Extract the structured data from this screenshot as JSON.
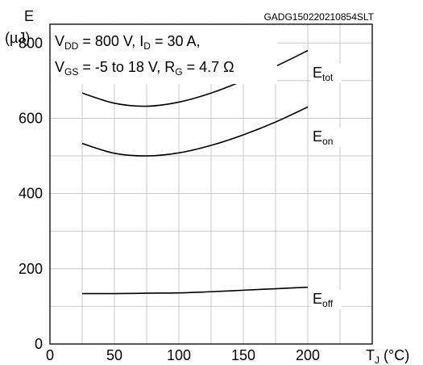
{
  "chart_data": {
    "type": "line",
    "doc_id": "GADG150220210854SLT",
    "ylabel": {
      "symbol": "E",
      "unit": "(µJ)"
    },
    "xlabel": {
      "symbol": "T",
      "sub": "J",
      "unit": " (°C)"
    },
    "conditions": [
      [
        {
          "t": "V"
        },
        {
          "t": "DD",
          "sub": true
        },
        {
          "t": " = 800 V, I"
        },
        {
          "t": "D",
          "sub": true
        },
        {
          "t": " = 30 A,"
        }
      ],
      [
        {
          "t": "V"
        },
        {
          "t": "GS",
          "sub": true
        },
        {
          "t": " = -5 to 18 V, R"
        },
        {
          "t": "G",
          "sub": true
        },
        {
          "t": " = 4.7 Ω"
        }
      ]
    ],
    "xlim": [
      0,
      250
    ],
    "ylim": [
      0,
      850
    ],
    "x_ticks": [
      "0",
      "50",
      "100",
      "150",
      "200"
    ],
    "y_ticks": [
      "0",
      "200",
      "400",
      "600",
      "800"
    ],
    "x_tick_values": [
      0,
      50,
      100,
      150,
      200
    ],
    "y_tick_values": [
      0,
      200,
      400,
      600,
      800
    ],
    "x_grid_step": 25,
    "y_grid_step": 100,
    "grid": true,
    "series": [
      {
        "name": "E",
        "name_sub": "tot",
        "x": [
          25,
          50,
          75,
          100,
          125,
          150,
          175,
          200
        ],
        "y": [
          667,
          640,
          632,
          643,
          667,
          700,
          738,
          780
        ]
      },
      {
        "name": "E",
        "name_sub": "on",
        "x": [
          25,
          50,
          75,
          100,
          125,
          150,
          175,
          200
        ],
        "y": [
          533,
          507,
          500,
          508,
          528,
          556,
          590,
          630
        ]
      },
      {
        "name": "E",
        "name_sub": "off",
        "x": [
          25,
          50,
          75,
          100,
          125,
          150,
          175,
          200
        ],
        "y": [
          134,
          134,
          135,
          136,
          139,
          143,
          147,
          151
        ]
      }
    ]
  }
}
